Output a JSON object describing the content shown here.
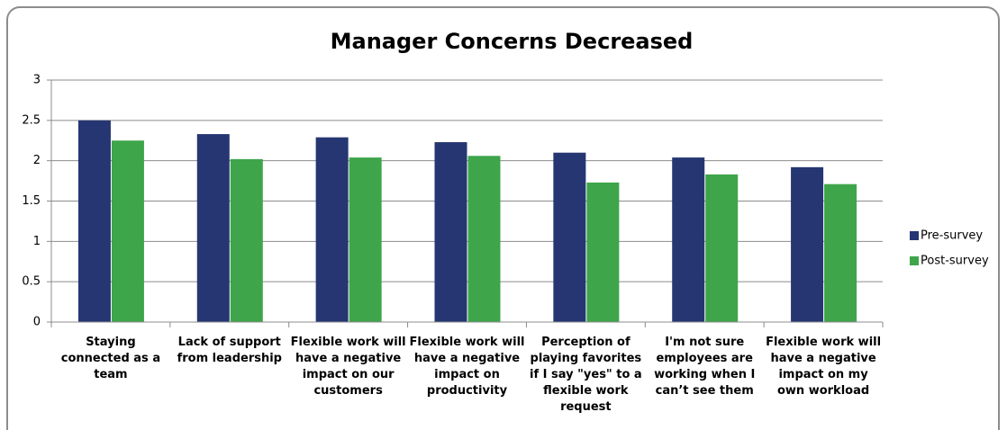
{
  "chart_data": {
    "type": "bar",
    "title": "Manager Concerns Decreased",
    "categories": [
      "Staying connected as a team",
      "Lack of support from leadership",
      "Flexible work will have a negative impact on our customers",
      "Flexible work will have a negative impact on productivity",
      "Perception of playing favorites if I say \"yes\" to a flexible work request",
      "I'm not sure employees are working when I can’t see them",
      "Flexible work will have a negative impact on my own workload"
    ],
    "series": [
      {
        "name": "Pre-survey",
        "color": "#253672",
        "values": [
          2.5,
          2.33,
          2.29,
          2.23,
          2.1,
          2.04,
          1.92
        ]
      },
      {
        "name": "Post-survey",
        "color": "#3ea54a",
        "values": [
          2.25,
          2.02,
          2.04,
          2.06,
          1.73,
          1.83,
          1.71
        ]
      }
    ],
    "ylim": [
      0,
      3
    ],
    "yticks": [
      0,
      0.5,
      1,
      1.5,
      2,
      2.5,
      3
    ],
    "grid": true,
    "legend": "right"
  }
}
